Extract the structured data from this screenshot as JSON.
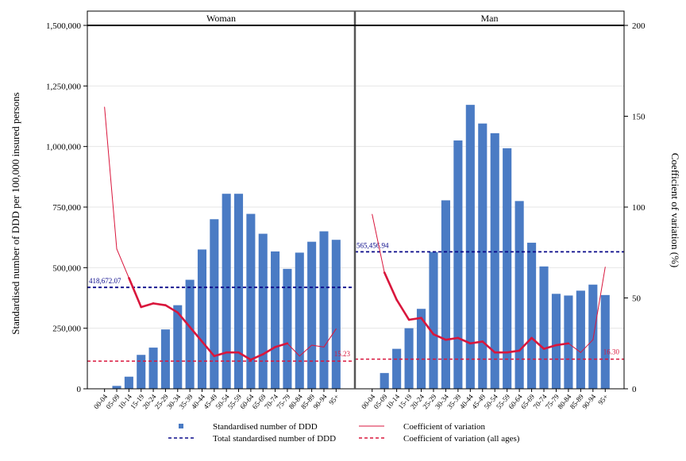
{
  "colors": {
    "bar": "#4a7bc4",
    "cv_line": "#d9163c",
    "total_line": "#0a0a8a",
    "cv_all_line": "#d9163c",
    "grid": "#e6e6e6"
  },
  "chart_data": {
    "type": "bar",
    "panels": [
      {
        "title": "Woman",
        "total_label": "418,672.07",
        "total_value": 418672.07,
        "cv_all_label": "15.23",
        "cv_all_value": 15.23,
        "categories": [
          "00-04",
          "05-09",
          "10-14",
          "15-19",
          "20-24",
          "25-29",
          "30-34",
          "35-39",
          "40-44",
          "45-49",
          "50-54",
          "55-59",
          "60-64",
          "65-69",
          "70-74",
          "75-79",
          "80-84",
          "85-89",
          "90-94",
          "95+"
        ],
        "ddd": [
          0,
          12000,
          50000,
          140000,
          170000,
          245000,
          345000,
          450000,
          575000,
          700000,
          805000,
          805000,
          722000,
          640000,
          567000,
          495000,
          562000,
          607000,
          650000,
          615000
        ],
        "cv": [
          155,
          77,
          61,
          45,
          47,
          46,
          42,
          34,
          26,
          18,
          20,
          20,
          16,
          19,
          23,
          25,
          18,
          24,
          23,
          33
        ],
        "cv_bold": [
          false,
          false,
          true,
          true,
          true,
          true,
          true,
          true,
          true,
          true,
          true,
          true,
          true,
          true,
          true,
          true,
          false,
          false,
          false,
          false
        ]
      },
      {
        "title": "Man",
        "total_label": "565,456.94",
        "total_value": 565456.94,
        "cv_all_label": "16.30",
        "cv_all_value": 16.3,
        "categories": [
          "00-04",
          "05-09",
          "10-14",
          "15-19",
          "20-24",
          "25-29",
          "30-34",
          "35-39",
          "40-44",
          "45-49",
          "50-54",
          "55-59",
          "60-64",
          "65-69",
          "70-74",
          "75-79",
          "80-84",
          "85-89",
          "90-94",
          "95+"
        ],
        "ddd": [
          0,
          65000,
          165000,
          250000,
          330000,
          565000,
          778000,
          1025000,
          1172000,
          1095000,
          1055000,
          993000,
          775000,
          603000,
          505000,
          392000,
          385000,
          405000,
          430000,
          387000
        ],
        "cv": [
          96,
          64,
          49,
          38,
          39,
          30,
          27,
          28,
          25,
          26,
          20,
          20,
          21,
          28,
          22,
          24,
          25,
          20,
          27,
          67
        ],
        "cv_bold": [
          false,
          true,
          true,
          true,
          true,
          true,
          true,
          true,
          true,
          true,
          true,
          true,
          true,
          true,
          true,
          true,
          true,
          false,
          false,
          false
        ]
      }
    ],
    "ylabel": "Standardised number of DDD per 100,000 insured persons",
    "y2label": "Coefficient of variation (%)",
    "ylim": [
      0,
      1500000
    ],
    "y2lim": [
      0,
      200
    ],
    "yticks": [
      0,
      250000,
      500000,
      750000,
      1000000,
      1250000,
      1500000
    ],
    "ytick_labels": [
      "0",
      "250,000",
      "500,000",
      "750,000",
      "1,000,000",
      "1,250,000",
      "1,500,000"
    ],
    "y2ticks": [
      0,
      50,
      100,
      150,
      200
    ],
    "y2tick_labels": [
      "0",
      "50",
      "100",
      "150",
      "200"
    ],
    "grid": true,
    "legend": {
      "position": "bottom",
      "items": [
        {
          "key": "bar",
          "label": "Standardised number of DDD"
        },
        {
          "key": "cv",
          "label": "Coefficient of variation"
        },
        {
          "key": "total",
          "label": "Total standardised number of DDD"
        },
        {
          "key": "cv_all",
          "label": "Coefficient of variation (all ages)"
        }
      ]
    }
  }
}
